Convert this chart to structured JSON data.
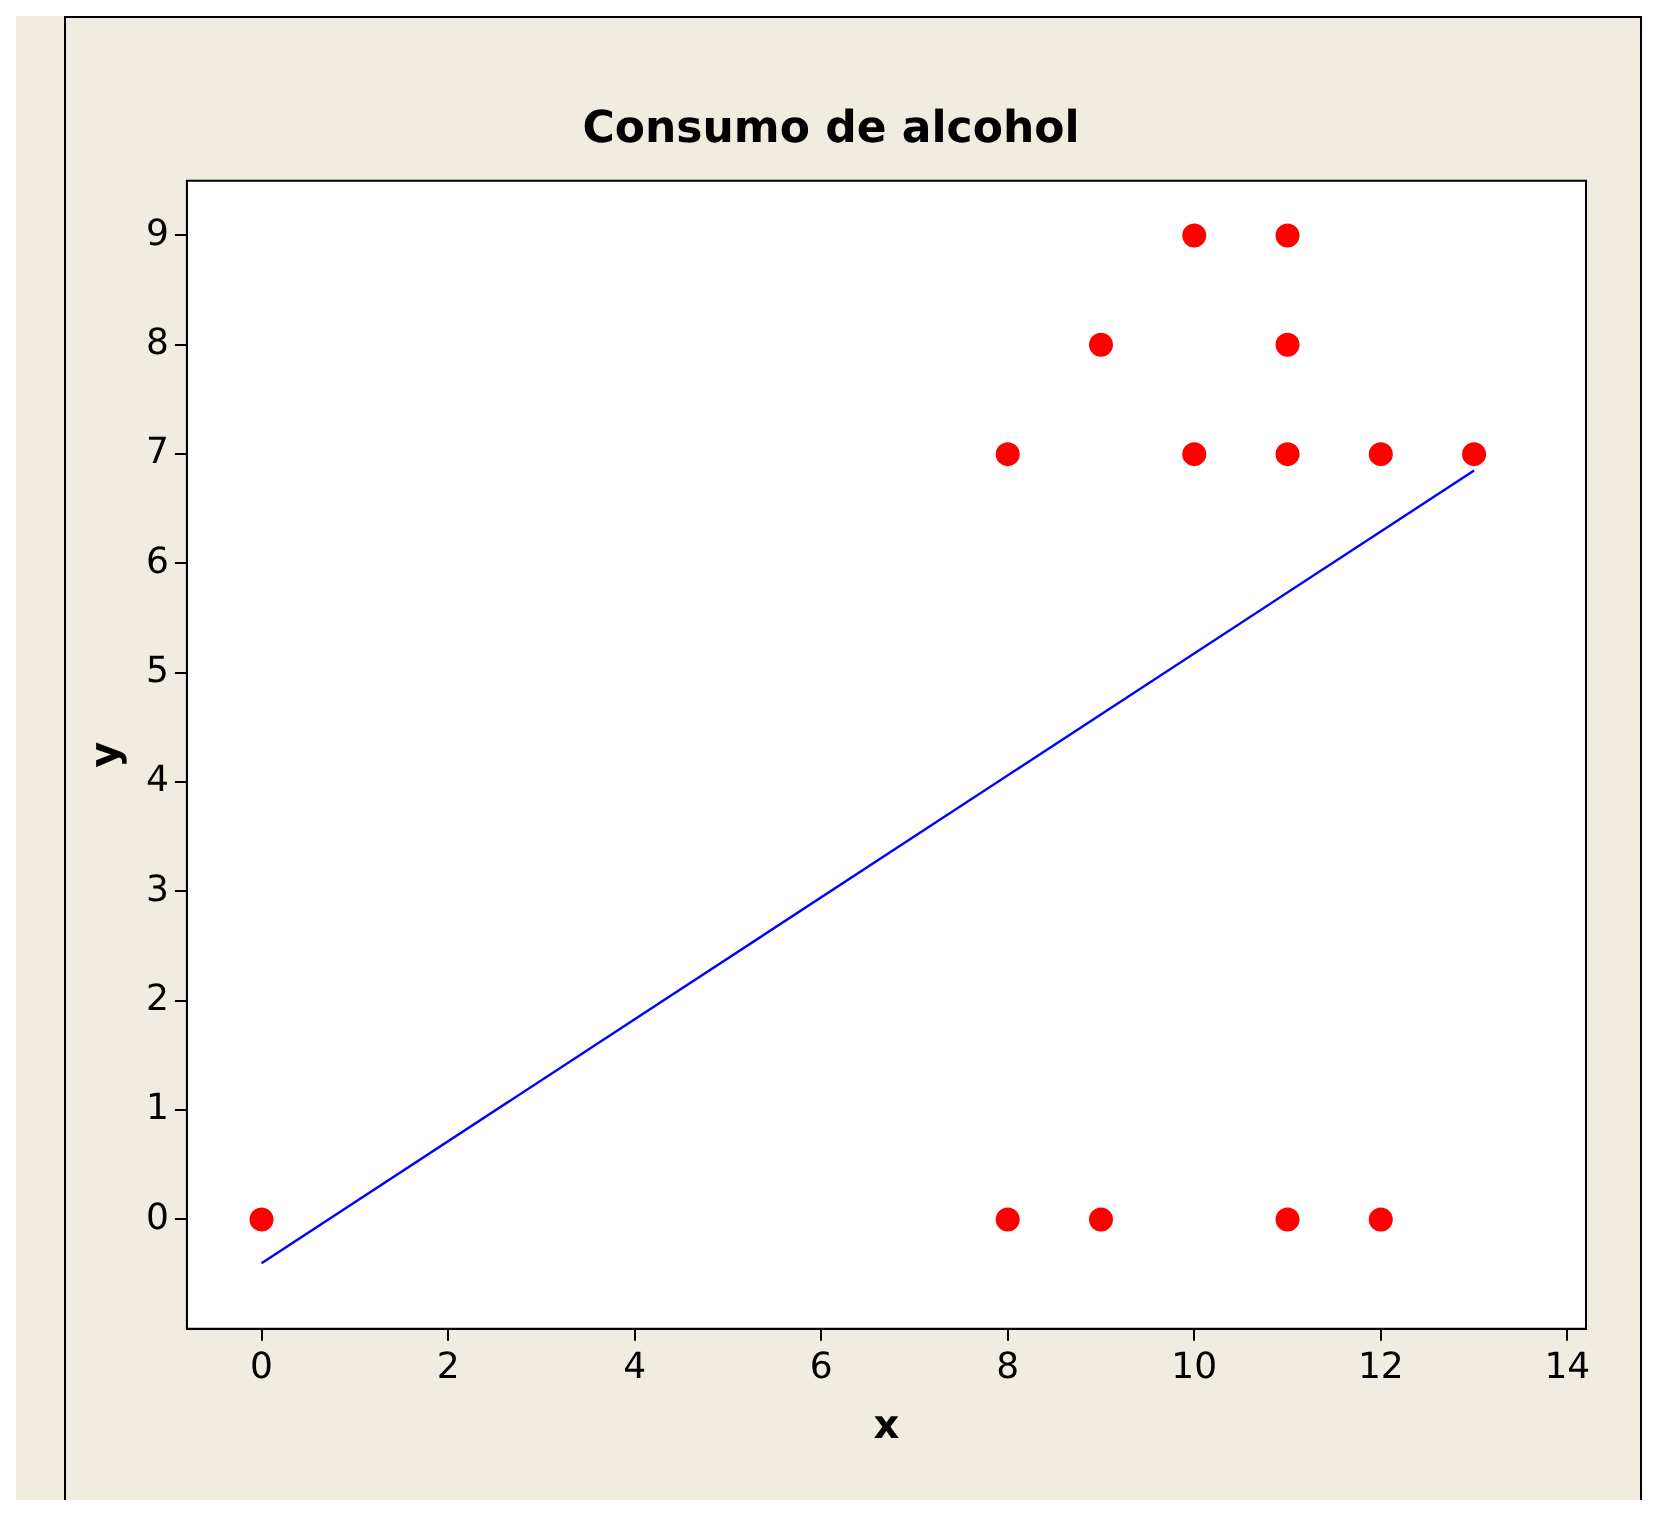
{
  "chart_data": {
    "type": "scatter",
    "title": "Consumo de alcohol",
    "xlabel": "x",
    "ylabel": "y",
    "xlim": [
      -0.8,
      14.2
    ],
    "xticks": [
      0,
      2,
      4,
      6,
      8,
      10,
      12,
      14
    ],
    "ylim": [
      -1,
      9.5
    ],
    "yticks": [
      0,
      1,
      2,
      3,
      4,
      5,
      6,
      7,
      8,
      9
    ],
    "grid": false,
    "legend": false,
    "marker": "circle",
    "series": [
      {
        "color": "#ff0000",
        "x": [
          0,
          8,
          8,
          9,
          9,
          10,
          10,
          11,
          11,
          11,
          11,
          12,
          12,
          13
        ],
        "values": [
          0,
          7,
          0,
          8,
          0,
          9,
          7,
          9,
          8,
          7,
          0,
          7,
          0,
          7
        ]
      },
      {
        "type": "line",
        "color": "#0000ff",
        "x": [
          0,
          13
        ],
        "values": [
          -0.4,
          6.85
        ],
        "marker": "none",
        "line_style": "solid"
      }
    ]
  }
}
